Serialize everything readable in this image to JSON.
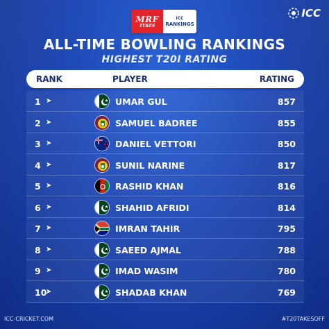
{
  "sponsor": {
    "mrf_text": "MRF",
    "mrf_sub": "TYRES",
    "rankings_icc": "ICC",
    "rankings_text": "RANKINGS"
  },
  "brand": {
    "icc_text": "ICC"
  },
  "title": "ALL-TIME BOWLING RANKINGS",
  "subtitle": "HIGHEST T20I RATING",
  "table": {
    "headers": {
      "rank": "RANK",
      "player": "PLAYER",
      "rating": "RATING"
    },
    "rows": [
      {
        "rank": "1",
        "player": "UMAR GUL",
        "rating": "857",
        "flag": "pakistan"
      },
      {
        "rank": "2",
        "player": "SAMUEL BADREE",
        "rating": "855",
        "flag": "west-indies"
      },
      {
        "rank": "3",
        "player": "DANIEL VETTORI",
        "rating": "850",
        "flag": "new-zealand"
      },
      {
        "rank": "4",
        "player": "SUNIL NARINE",
        "rating": "817",
        "flag": "west-indies"
      },
      {
        "rank": "5",
        "player": "RASHID KHAN",
        "rating": "816",
        "flag": "afghanistan"
      },
      {
        "rank": "6",
        "player": "SHAHID AFRIDI",
        "rating": "814",
        "flag": "pakistan"
      },
      {
        "rank": "7",
        "player": "IMRAN TAHIR",
        "rating": "795",
        "flag": "south-africa"
      },
      {
        "rank": "8",
        "player": "SAEED AJMAL",
        "rating": "788",
        "flag": "pakistan"
      },
      {
        "rank": "9",
        "player": "IMAD WASIM",
        "rating": "780",
        "flag": "pakistan"
      },
      {
        "rank": "10",
        "player": "SHADAB KHAN",
        "rating": "769",
        "flag": "pakistan"
      }
    ]
  },
  "footer": {
    "left": "ICC-CRICKET.COM",
    "right": "#T20TAKESOFF"
  },
  "colors": {
    "background": "#1a44b2",
    "header_text": "#1b3071",
    "mrf_red": "#e4242b"
  }
}
